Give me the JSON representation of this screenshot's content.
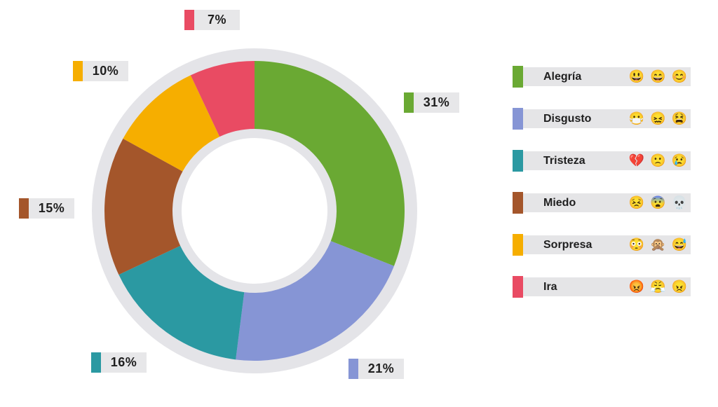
{
  "chart_data": {
    "type": "pie",
    "subtype": "donut",
    "categories": [
      "Alegría",
      "Disgusto",
      "Tristeza",
      "Miedo",
      "Sorpresa",
      "Ira"
    ],
    "values": [
      31,
      21,
      16,
      15,
      10,
      7
    ],
    "value_labels": [
      "31%",
      "21%",
      "16%",
      "15%",
      "10%",
      "7%"
    ],
    "colors": [
      "#6AA933",
      "#8695D5",
      "#2B99A2",
      "#A4562B",
      "#F6AE00",
      "#E94B63"
    ],
    "start_angle": "top",
    "direction": "clockwise",
    "legend_position": "right",
    "background_disc_color": "#E4E4E8",
    "hole_color": "#FFFFFF"
  },
  "legend": {
    "items": [
      {
        "label": "Alegría",
        "color": "#6AA933",
        "emojis": "😃 😄 😊"
      },
      {
        "label": "Disgusto",
        "color": "#8695D5",
        "emojis": "😷 😖 😫"
      },
      {
        "label": "Tristeza",
        "color": "#2B99A2",
        "emojis": "💔 🙁 😢"
      },
      {
        "label": "Miedo",
        "color": "#A4562B",
        "emojis": "😣 😨 💀"
      },
      {
        "label": "Sorpresa",
        "color": "#F6AE00",
        "emojis": "😳 🙊 😅"
      },
      {
        "label": "Ira",
        "color": "#E94B63",
        "emojis": "😡 😤 😠"
      }
    ]
  }
}
